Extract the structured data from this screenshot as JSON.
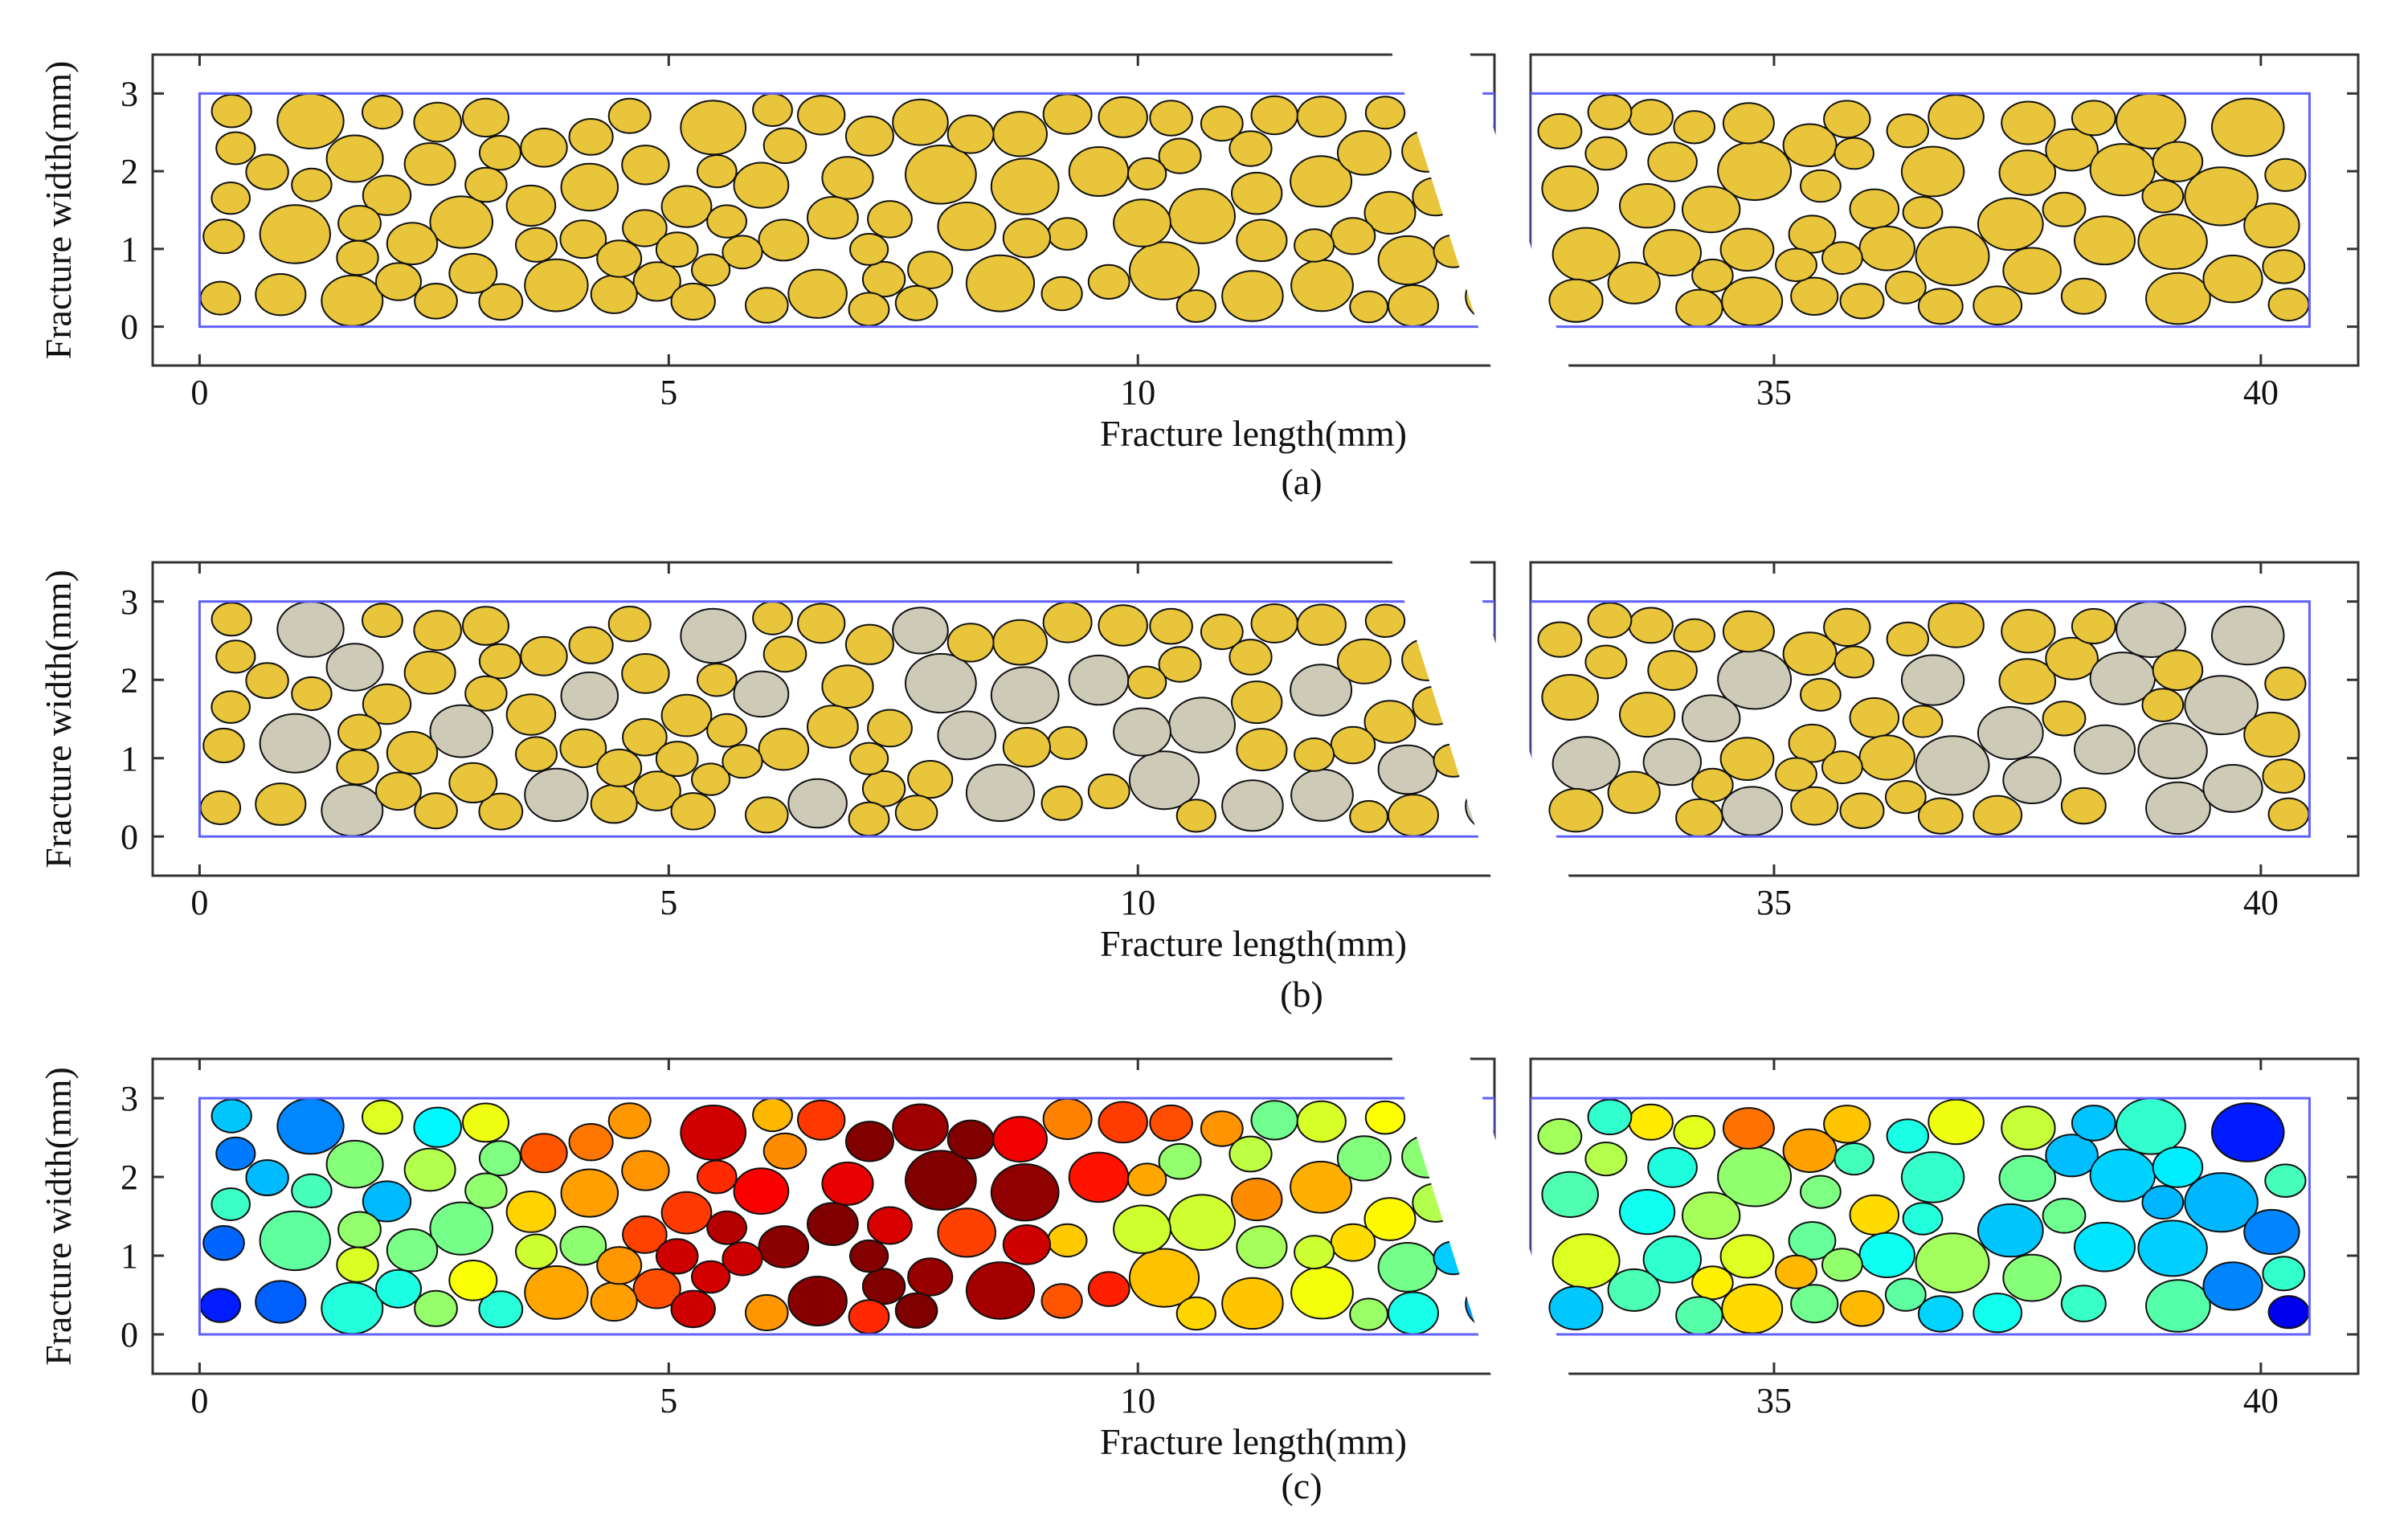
{
  "figure": {
    "background": "#ffffff",
    "axis_color": "#333333",
    "domain_border_color": "#6060ff",
    "particle_outline_color": "#111111"
  },
  "chart_data": [
    {
      "type": "scatter",
      "panel_label": "(a)",
      "title": "",
      "xlabel": "Fracture length(mm)",
      "ylabel": "Fracture width(mm)",
      "x_ticks_left": [
        0,
        5,
        10
      ],
      "x_ticks_right": [
        35,
        40
      ],
      "y_ticks": [
        0,
        1,
        2,
        3
      ],
      "xlim_left_segment": [
        -0.5,
        13.8
      ],
      "xlim_right_segment": [
        32.5,
        41
      ],
      "ylim": [
        -0.5,
        3.5
      ],
      "domain_box": {
        "x": [
          0,
          40.5
        ],
        "y": [
          0,
          3
        ]
      },
      "axis_break": "between 13.8 and 32.5 mm",
      "color_mode": "uniform",
      "fill_colors": [
        "#e8c53a"
      ],
      "particle_radius_range_mm": [
        0.2,
        0.38
      ],
      "particle_layout_seed": 11
    },
    {
      "type": "scatter",
      "panel_label": "(b)",
      "title": "",
      "xlabel": "Fracture length(mm)",
      "ylabel": "Fracture width(mm)",
      "x_ticks_left": [
        0,
        5,
        10
      ],
      "x_ticks_right": [
        35,
        40
      ],
      "y_ticks": [
        0,
        1,
        2,
        3
      ],
      "xlim_left_segment": [
        -0.5,
        13.8
      ],
      "xlim_right_segment": [
        32.5,
        41
      ],
      "ylim": [
        -0.5,
        3.5
      ],
      "domain_box": {
        "x": [
          0,
          40.5
        ],
        "y": [
          0,
          3
        ]
      },
      "axis_break": "between 13.8 and 32.5 mm",
      "color_mode": "size_two_class",
      "fill_colors": [
        "#e8c53a",
        "#cdcbb8"
      ],
      "size_class_threshold_mm": 0.29,
      "particle_radius_range_mm": [
        0.2,
        0.38
      ],
      "particle_layout_seed": 11
    },
    {
      "type": "scatter",
      "panel_label": "(c)",
      "title": "",
      "xlabel": "Fracture length(mm)",
      "ylabel": "Fracture width(mm)",
      "x_ticks_left": [
        0,
        5,
        10
      ],
      "x_ticks_right": [
        35,
        40
      ],
      "y_ticks": [
        0,
        1,
        2,
        3
      ],
      "xlim_left_segment": [
        -0.5,
        13.8
      ],
      "xlim_right_segment": [
        32.5,
        41
      ],
      "ylim": [
        -0.5,
        3.5
      ],
      "domain_box": {
        "x": [
          0,
          40.5
        ],
        "y": [
          0,
          3
        ]
      },
      "axis_break": "between 13.8 and 32.5 mm",
      "color_mode": "jet_field",
      "fill_colors": [
        "#00008f",
        "#0000ff",
        "#0080ff",
        "#00ffff",
        "#80ff80",
        "#ffff00",
        "#ff8000",
        "#ff0000",
        "#800000"
      ],
      "particle_radius_range_mm": [
        0.2,
        0.38
      ],
      "particle_layout_seed": 11
    }
  ]
}
